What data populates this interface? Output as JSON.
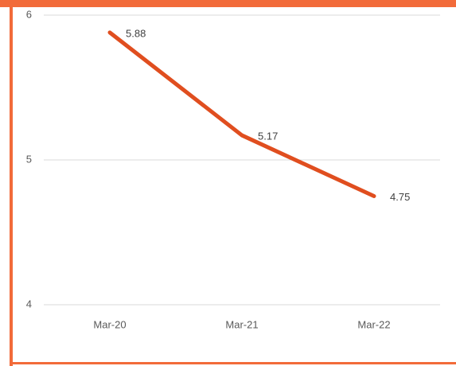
{
  "chart_data": {
    "type": "line",
    "categories": [
      "Mar-20",
      "Mar-21",
      "Mar-22"
    ],
    "series": [
      {
        "name": null,
        "color": "#e04e1f",
        "values": [
          5.88,
          5.17,
          4.75
        ]
      }
    ],
    "ylim": [
      4,
      6
    ],
    "yticks": [
      4,
      5,
      6
    ],
    "grid": true,
    "data_labels": true
  }
}
